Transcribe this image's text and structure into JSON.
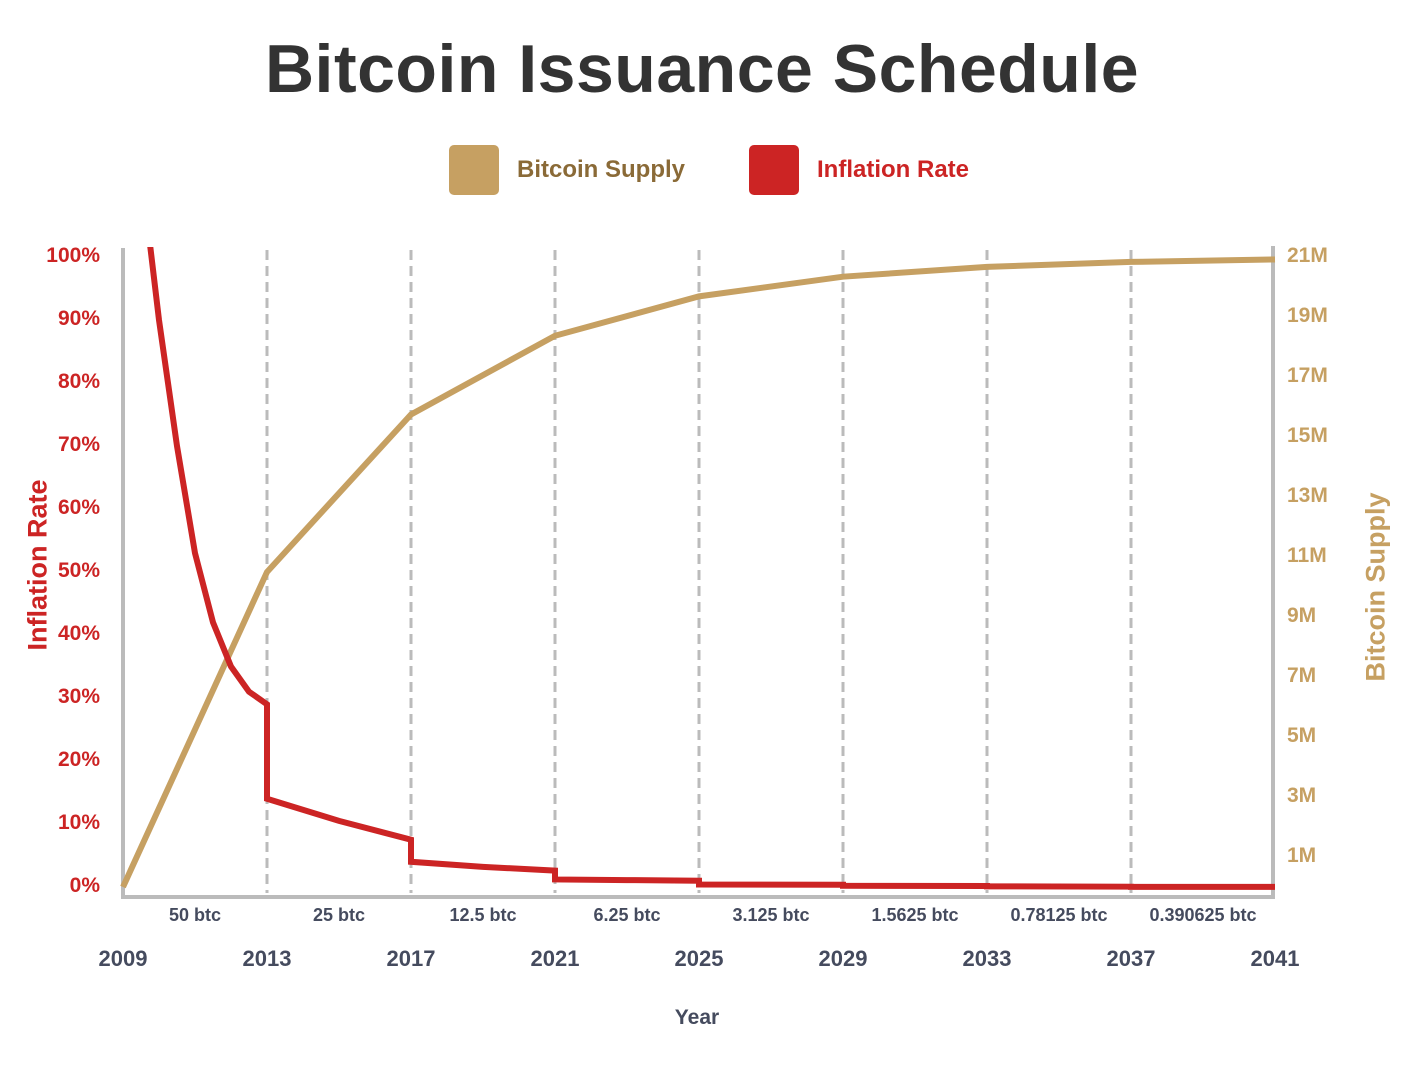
{
  "title": "Bitcoin Issuance Schedule",
  "colors": {
    "supply": "#c6a062",
    "supply_text": "#8a6a37",
    "inflation": "#cc2424",
    "axis": "#bbbbbb",
    "text_dark": "#454b5e",
    "title": "#333333"
  },
  "legend": {
    "items": [
      {
        "label": "Bitcoin Supply",
        "color": "#c6a062"
      },
      {
        "label": "Inflation Rate",
        "color": "#cc2424"
      }
    ]
  },
  "axes": {
    "left_title": "Inflation Rate",
    "right_title": "Bitcoin Supply",
    "x_title": "Year",
    "left_ticks": [
      "100%",
      "90%",
      "80%",
      "70%",
      "60%",
      "50%",
      "40%",
      "30%",
      "20%",
      "10%",
      "0%"
    ],
    "right_ticks": [
      "21M",
      "19M",
      "17M",
      "15M",
      "13M",
      "11M",
      "9M",
      "7M",
      "5M",
      "3M",
      "1M"
    ],
    "x_ticks": [
      "2009",
      "2013",
      "2017",
      "2021",
      "2025",
      "2029",
      "2033",
      "2037",
      "2041"
    ],
    "block_rewards": [
      "50 btc",
      "25 btc",
      "12.5 btc",
      "6.25 btc",
      "3.125 btc",
      "1.5625 btc",
      "0.78125 btc",
      "0.390625 btc"
    ]
  },
  "chart_data": {
    "type": "line",
    "title": "Bitcoin Issuance Schedule",
    "xlabel": "Year",
    "ylabel": "Inflation Rate",
    "y2label": "Bitcoin Supply",
    "x": [
      2009,
      2013,
      2017,
      2021,
      2025,
      2029,
      2033,
      2037,
      2041
    ],
    "ylim": [
      0,
      100
    ],
    "y2lim": [
      0,
      21000000
    ],
    "grid": "vertical dashed lines at each halving year",
    "legend_position": "top-center",
    "series": [
      {
        "name": "Bitcoin Supply",
        "axis": "right",
        "unit": "BTC",
        "x": [
          2009,
          2013,
          2017,
          2021,
          2025,
          2029,
          2033,
          2037,
          2041
        ],
        "values": [
          0,
          10500000,
          15750000,
          18375000,
          19687500,
          20343750,
          20671875,
          20835938,
          20917969
        ]
      },
      {
        "name": "Inflation Rate",
        "axis": "left",
        "unit": "%",
        "x": [
          2009.75,
          2010,
          2010.5,
          2011,
          2011.5,
          2012,
          2012.5,
          2013,
          2013,
          2015,
          2017,
          2017,
          2019,
          2021,
          2021,
          2023,
          2025,
          2025,
          2029,
          2029,
          2033,
          2033,
          2037,
          2037,
          2041
        ],
        "values": [
          102,
          90,
          70,
          53,
          42,
          35,
          31,
          29,
          14,
          10.5,
          7.5,
          4,
          3.2,
          2.6,
          1.2,
          1.1,
          1.0,
          0.4,
          0.35,
          0.2,
          0.15,
          0.1,
          0.05,
          0.02,
          0.01
        ]
      }
    ],
    "annotations": {
      "block_rewards_per_era": [
        "50 btc",
        "25 btc",
        "12.5 btc",
        "6.25 btc",
        "3.125 btc",
        "1.5625 btc",
        "0.78125 btc",
        "0.390625 btc"
      ]
    }
  }
}
